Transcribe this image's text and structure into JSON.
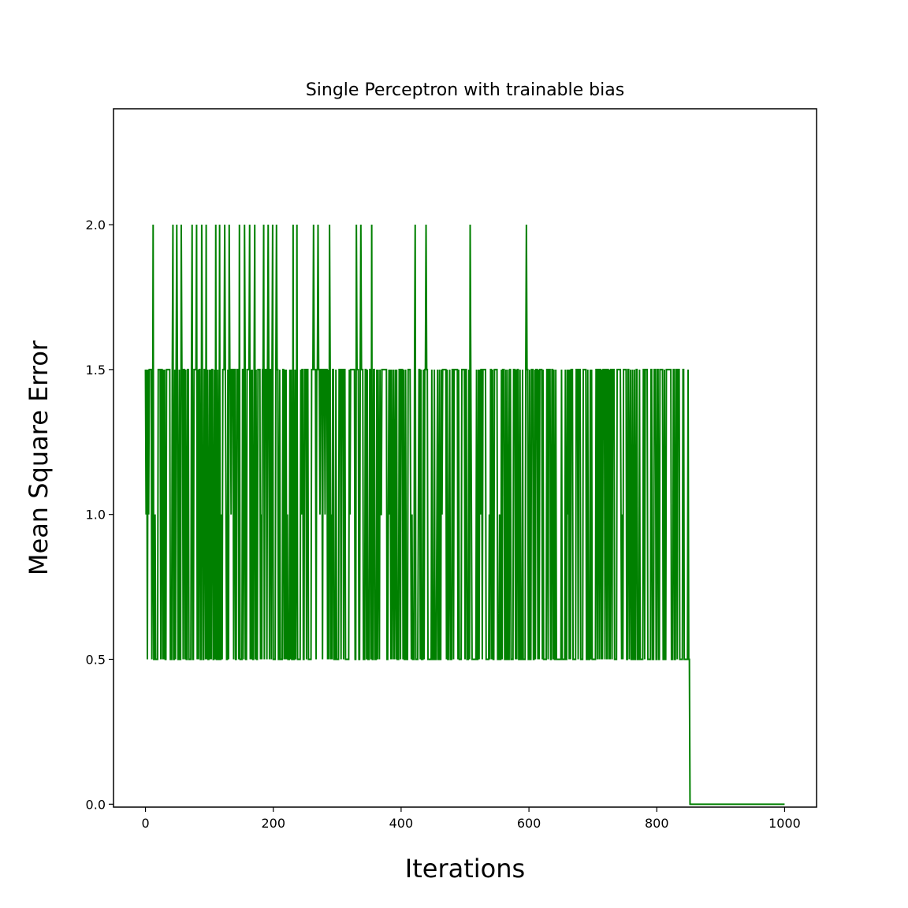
{
  "chart_data": {
    "type": "line",
    "title": "Single Perceptron with trainable bias",
    "xlabel": "Iterations",
    "ylabel": "Mean Square Error",
    "xlim": [
      -50,
      1050
    ],
    "ylim": [
      -0.01,
      2.4
    ],
    "x_ticks": [
      0,
      200,
      400,
      600,
      800,
      1000
    ],
    "x_tick_labels": [
      "0",
      "200",
      "400",
      "600",
      "800",
      "1000"
    ],
    "y_ticks": [
      0.0,
      0.5,
      1.0,
      1.5,
      2.0
    ],
    "y_tick_labels": [
      "0.0",
      "0.5",
      "1.0",
      "1.5",
      "2.0"
    ],
    "grid": false,
    "legend": "none",
    "series": [
      {
        "color": "#008000",
        "x_range": [
          0,
          1000
        ],
        "oscillation": {
          "x_end": 851,
          "low": 0.5,
          "high": 1.5,
          "also_visits": 1.0
        },
        "spike_value": 2.0,
        "spike_x": [
          12,
          43,
          49,
          56,
          73,
          80,
          88,
          95,
          110,
          116,
          124,
          131,
          147,
          155,
          163,
          171,
          185,
          192,
          199,
          205,
          231,
          237,
          263,
          270,
          288,
          330,
          337,
          354,
          422,
          439,
          508,
          596
        ],
        "converged_value": 0.0,
        "converged_from_x": 852,
        "note_points": [
          {
            "x": 0,
            "y": 1.5
          },
          {
            "x": 1,
            "y": 1.0
          },
          {
            "x": 851,
            "y": 0.5
          },
          {
            "x": 852,
            "y": 0.0
          },
          {
            "x": 1000,
            "y": 0.0
          }
        ]
      }
    ]
  }
}
